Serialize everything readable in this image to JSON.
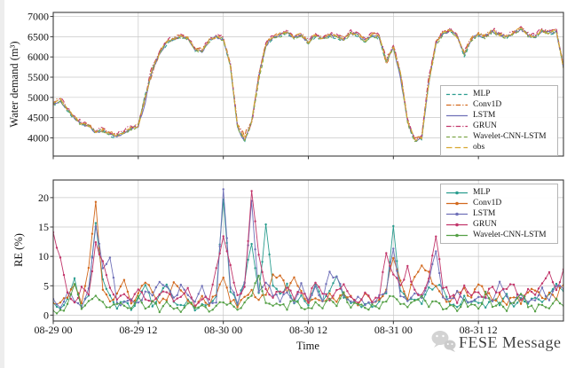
{
  "watermark": {
    "text": "FESE Message",
    "color": "#c9c9c9"
  },
  "axes": {
    "time_label": "Time",
    "x_tick_labels": [
      "08-29 00",
      "08-29 12",
      "08-30 00",
      "08-30 12",
      "08-31 00",
      "08-31 12"
    ]
  },
  "chart_data": [
    {
      "id": "water-demand",
      "type": "line",
      "title": "",
      "xlabel": "",
      "ylabel": "Water demand (m³)",
      "ylim": [
        3550,
        7100
      ],
      "yticks": [
        4000,
        4500,
        5000,
        5500,
        6000,
        6500,
        7000
      ],
      "x_start": "08-29 00",
      "x_step_hours": 1,
      "xlim_hours": [
        0,
        72
      ],
      "xticks": [
        {
          "h": 0,
          "label": "08-29 00"
        },
        {
          "h": 12,
          "label": "08-29 12"
        },
        {
          "h": 24,
          "label": "08-30 00"
        },
        {
          "h": 36,
          "label": "08-30 12"
        },
        {
          "h": 48,
          "label": "08-31 00"
        },
        {
          "h": 60,
          "label": "08-31 12"
        }
      ],
      "grid": true,
      "legend_loc": "right-middle-inside",
      "series": [
        {
          "name": "MLP",
          "color": "#2a9d8f",
          "dash": "4 2.6",
          "marker": "none",
          "offset": -25,
          "jitter": 45,
          "seed": 3,
          "values": [
            4850,
            4950,
            4700,
            4500,
            4350,
            4300,
            4150,
            4200,
            4100,
            4050,
            4150,
            4250,
            4300,
            5100,
            5700,
            6100,
            6350,
            6450,
            6500,
            6450,
            6200,
            6150,
            6400,
            6500,
            6450,
            5800,
            4300,
            3950,
            4400,
            5600,
            6300,
            6500,
            6550,
            6600,
            6500,
            6550,
            6350,
            6550,
            6450,
            6550,
            6500,
            6450,
            6600,
            6550,
            6400,
            6550,
            6500,
            5900,
            6250,
            5600,
            4400,
            3950,
            4000,
            5400,
            6350,
            6600,
            6650,
            6500,
            6050,
            6450,
            6550,
            6500,
            6650,
            6550,
            6500,
            6600,
            6700,
            6550,
            6500,
            6650,
            6600,
            6650,
            5750
          ]
        },
        {
          "name": "Conv1D",
          "color": "#d2691e",
          "dash": "5.5 2 1.2 2",
          "marker": "none",
          "offset": 15,
          "jitter": 50,
          "seed": 7,
          "values": [
            4850,
            4950,
            4700,
            4500,
            4350,
            4300,
            4150,
            4200,
            4100,
            4050,
            4150,
            4250,
            4300,
            5000,
            5600,
            6100,
            6350,
            6450,
            6500,
            6450,
            6200,
            6150,
            6400,
            6500,
            6450,
            5800,
            4300,
            4050,
            4400,
            5500,
            6300,
            6500,
            6550,
            6600,
            6500,
            6550,
            6350,
            6550,
            6450,
            6550,
            6500,
            6450,
            6600,
            6550,
            6400,
            6550,
            6500,
            5800,
            6250,
            5600,
            4400,
            3950,
            4000,
            5400,
            6350,
            6600,
            6650,
            6500,
            6100,
            6450,
            6550,
            6500,
            6650,
            6550,
            6500,
            6600,
            6700,
            6550,
            6500,
            6650,
            6600,
            6650,
            5750
          ]
        },
        {
          "name": "LSTM",
          "color": "#6f70b8",
          "dash": "",
          "marker": "none",
          "offset": -10,
          "jitter": 40,
          "seed": 13,
          "values": [
            4850,
            4950,
            4700,
            4500,
            4350,
            4300,
            4150,
            4200,
            4100,
            4050,
            4150,
            4250,
            4300,
            4900,
            5700,
            6100,
            6350,
            6450,
            6500,
            6450,
            6200,
            6150,
            6400,
            6500,
            6450,
            5800,
            4250,
            3950,
            4400,
            5500,
            6300,
            6500,
            6550,
            6600,
            6500,
            6550,
            6350,
            6550,
            6450,
            6550,
            6500,
            6450,
            6600,
            6550,
            6400,
            6550,
            6500,
            5900,
            6250,
            5500,
            4400,
            3950,
            4000,
            5400,
            6350,
            6600,
            6650,
            6500,
            6100,
            6450,
            6550,
            6500,
            6650,
            6550,
            6500,
            6600,
            6700,
            6550,
            6500,
            6650,
            6600,
            6650,
            5750
          ]
        },
        {
          "name": "GRUN",
          "color": "#c2366b",
          "dash": "5.5 2 1.2 2",
          "marker": "none",
          "offset": 30,
          "jitter": 55,
          "seed": 21,
          "values": [
            4850,
            4950,
            4700,
            4500,
            4350,
            4300,
            4150,
            4200,
            4100,
            4050,
            4150,
            4250,
            4300,
            5000,
            5800,
            6100,
            6350,
            6450,
            6500,
            6450,
            6200,
            6150,
            6400,
            6500,
            6450,
            5800,
            4300,
            3950,
            4300,
            5500,
            6300,
            6500,
            6550,
            6600,
            6500,
            6550,
            6350,
            6550,
            6450,
            6550,
            6500,
            6450,
            6600,
            6550,
            6400,
            6550,
            6500,
            5900,
            6250,
            5600,
            4400,
            3950,
            4000,
            5500,
            6350,
            6600,
            6650,
            6500,
            6100,
            6450,
            6550,
            6500,
            6650,
            6550,
            6500,
            6600,
            6700,
            6550,
            6500,
            6650,
            6600,
            6650,
            5750
          ]
        },
        {
          "name": "Wavelet-CNN-LSTM",
          "color": "#7fa84c",
          "dash": "4 2.6",
          "marker": "none",
          "offset": -20,
          "jitter": 45,
          "seed": 31,
          "values": [
            4850,
            4950,
            4700,
            4500,
            4350,
            4300,
            4150,
            4200,
            4100,
            4050,
            4150,
            4250,
            4300,
            5050,
            5700,
            6100,
            6350,
            6450,
            6500,
            6450,
            6200,
            6150,
            6400,
            6500,
            6450,
            5800,
            4300,
            3950,
            4400,
            5400,
            6300,
            6500,
            6550,
            6600,
            6500,
            6550,
            6350,
            6550,
            6450,
            6550,
            6500,
            6450,
            6600,
            6550,
            6400,
            6550,
            6500,
            5900,
            6250,
            5600,
            4400,
            3950,
            4000,
            5400,
            6300,
            6600,
            6650,
            6500,
            6100,
            6450,
            6550,
            6500,
            6650,
            6550,
            6500,
            6600,
            6700,
            6550,
            6500,
            6650,
            6600,
            6650,
            5750
          ]
        },
        {
          "name": "obs",
          "color": "#d8a62f",
          "dash": "6.5 3.2",
          "marker": "none",
          "offset": 5,
          "jitter": 40,
          "seed": 41,
          "values": [
            4850,
            4950,
            4700,
            4500,
            4350,
            4300,
            4150,
            4200,
            4100,
            4050,
            4150,
            4250,
            4300,
            5000,
            5700,
            6100,
            6350,
            6450,
            6500,
            6450,
            6200,
            6150,
            6400,
            6500,
            6450,
            5800,
            4300,
            3950,
            4400,
            5500,
            6300,
            6500,
            6550,
            6600,
            6500,
            6550,
            6350,
            6550,
            6450,
            6550,
            6500,
            6450,
            6600,
            6550,
            6400,
            6550,
            6500,
            5900,
            6250,
            5600,
            4400,
            3950,
            4000,
            5400,
            6350,
            6600,
            6650,
            6500,
            6100,
            6450,
            6550,
            6500,
            6650,
            6550,
            6500,
            6600,
            6700,
            6550,
            6500,
            6650,
            6600,
            6650,
            5750
          ]
        }
      ]
    },
    {
      "id": "relative-error",
      "type": "line",
      "title": "",
      "xlabel": "Time",
      "ylabel": "RE (%)",
      "ylim": [
        0,
        22
      ],
      "yticks": [
        0,
        5,
        10,
        15,
        20
      ],
      "x_start": "08-29 00",
      "x_step_hours": 1,
      "xlim_hours": [
        0,
        72
      ],
      "xticks": [
        {
          "h": 0,
          "label": "08-29 00"
        },
        {
          "h": 12,
          "label": "08-29 12"
        },
        {
          "h": 24,
          "label": "08-30 00"
        },
        {
          "h": 36,
          "label": "08-30 12"
        },
        {
          "h": 48,
          "label": "08-31 00"
        },
        {
          "h": 60,
          "label": "08-31 12"
        }
      ],
      "grid": true,
      "legend_loc": "upper-right-inside",
      "series": [
        {
          "name": "MLP",
          "color": "#2a9d8f",
          "dash": "",
          "marker": "dot",
          "jitter": 0.5,
          "seed": 51,
          "values": [
            2.5,
            1.2,
            3.0,
            6.3,
            1.0,
            3.5,
            15.5,
            6.5,
            3.0,
            1.5,
            2.2,
            1.0,
            2.8,
            5.2,
            1.8,
            3.0,
            5.6,
            2.2,
            1.4,
            2.6,
            1.0,
            2.0,
            1.5,
            3.2,
            20.0,
            4.0,
            2.0,
            6.0,
            12.0,
            3.5,
            15.4,
            5.0,
            3.8,
            5.0,
            2.5,
            3.2,
            2.0,
            5.5,
            2.8,
            4.5,
            6.5,
            3.0,
            2.2,
            1.5,
            2.0,
            1.2,
            2.5,
            3.5,
            15.4,
            4.0,
            2.5,
            3.0,
            2.0,
            4.5,
            5.0,
            4.5,
            2.0,
            1.5,
            2.8,
            1.8,
            2.4,
            1.2,
            3.0,
            2.0,
            3.5,
            1.5,
            2.6,
            1.8,
            3.0,
            2.2,
            3.5,
            5.0,
            4.0
          ]
        },
        {
          "name": "Conv1D",
          "color": "#d2691e",
          "dash": "",
          "marker": "dot",
          "jitter": 0.5,
          "seed": 57,
          "values": [
            1.8,
            2.5,
            3.0,
            5.5,
            2.0,
            8.0,
            19.4,
            4.0,
            2.5,
            3.5,
            5.5,
            2.0,
            3.8,
            5.8,
            4.2,
            2.0,
            3.0,
            5.5,
            4.5,
            2.5,
            1.5,
            2.8,
            2.0,
            3.5,
            6.0,
            2.5,
            1.8,
            3.0,
            4.5,
            2.5,
            3.5,
            6.5,
            7.0,
            4.0,
            6.5,
            4.0,
            2.5,
            3.0,
            2.0,
            3.5,
            2.5,
            4.0,
            2.8,
            1.5,
            3.5,
            2.0,
            2.8,
            4.5,
            10.0,
            5.5,
            3.0,
            7.0,
            8.5,
            7.0,
            4.5,
            3.0,
            2.2,
            3.8,
            4.5,
            3.0,
            5.5,
            4.0,
            2.5,
            3.2,
            2.0,
            3.0,
            2.2,
            3.5,
            4.5,
            2.5,
            3.8,
            3.0,
            5.5
          ]
        },
        {
          "name": "LSTM",
          "color": "#6f70b8",
          "dash": "",
          "marker": "dot",
          "jitter": 0.5,
          "seed": 63,
          "values": [
            3.0,
            1.5,
            4.0,
            2.5,
            1.2,
            5.0,
            15.5,
            8.0,
            9.7,
            2.5,
            1.8,
            3.0,
            2.0,
            4.0,
            3.0,
            5.5,
            4.8,
            2.5,
            5.0,
            3.0,
            2.0,
            4.5,
            1.8,
            2.5,
            21.5,
            5.0,
            2.5,
            5.0,
            19.0,
            4.0,
            6.0,
            3.5,
            2.5,
            3.8,
            2.0,
            5.0,
            3.0,
            4.5,
            2.5,
            7.3,
            6.3,
            3.5,
            2.0,
            2.8,
            1.5,
            2.2,
            3.0,
            4.0,
            11.5,
            3.5,
            2.8,
            4.0,
            3.0,
            5.5,
            11.0,
            3.5,
            2.5,
            4.0,
            3.0,
            2.0,
            3.5,
            2.8,
            2.0,
            5.8,
            3.0,
            2.2,
            3.8,
            2.5,
            3.0,
            4.2,
            2.8,
            5.0,
            4.5
          ]
        },
        {
          "name": "GRUN",
          "color": "#c2366b",
          "dash": "",
          "marker": "dot",
          "jitter": 0.5,
          "seed": 69,
          "values": [
            13.8,
            9.5,
            3.5,
            2.0,
            4.5,
            3.0,
            12.0,
            9.0,
            5.0,
            2.5,
            3.5,
            2.0,
            4.5,
            3.0,
            2.2,
            4.0,
            3.5,
            2.8,
            3.5,
            4.5,
            2.0,
            3.0,
            2.5,
            8.0,
            13.0,
            8.3,
            3.0,
            4.5,
            21.2,
            10.0,
            4.5,
            3.0,
            4.0,
            4.5,
            3.0,
            4.2,
            2.5,
            5.8,
            3.5,
            2.8,
            4.0,
            5.0,
            3.0,
            2.2,
            3.8,
            2.5,
            3.2,
            10.5,
            7.0,
            5.0,
            8.0,
            4.0,
            3.0,
            6.5,
            13.6,
            5.0,
            3.5,
            2.5,
            5.5,
            3.0,
            4.0,
            3.2,
            5.0,
            3.5,
            4.5,
            5.0,
            3.0,
            4.0,
            3.5,
            5.5,
            7.5,
            4.5,
            7.5
          ]
        },
        {
          "name": "Wavelet-CNN-LSTM",
          "color": "#55a046",
          "dash": "",
          "marker": "dot",
          "jitter": 0.5,
          "seed": 75,
          "values": [
            1.0,
            0.5,
            2.0,
            4.8,
            1.5,
            2.5,
            3.0,
            1.8,
            1.0,
            2.2,
            1.5,
            0.8,
            3.5,
            1.5,
            2.0,
            1.0,
            2.5,
            1.5,
            0.8,
            2.0,
            1.2,
            1.8,
            0.6,
            1.5,
            2.5,
            1.8,
            1.0,
            2.2,
            3.5,
            6.5,
            2.5,
            1.5,
            2.0,
            1.2,
            2.8,
            1.5,
            1.0,
            2.0,
            1.4,
            2.5,
            1.8,
            3.8,
            1.2,
            2.0,
            1.0,
            1.6,
            1.2,
            2.5,
            3.0,
            2.0,
            1.5,
            2.2,
            3.0,
            1.8,
            2.5,
            1.2,
            1.8,
            1.0,
            2.2,
            1.5,
            1.0,
            3.5,
            1.5,
            2.0,
            1.2,
            2.5,
            4.0,
            1.5,
            1.0,
            2.0,
            1.4,
            2.8,
            2.0
          ]
        }
      ]
    }
  ]
}
